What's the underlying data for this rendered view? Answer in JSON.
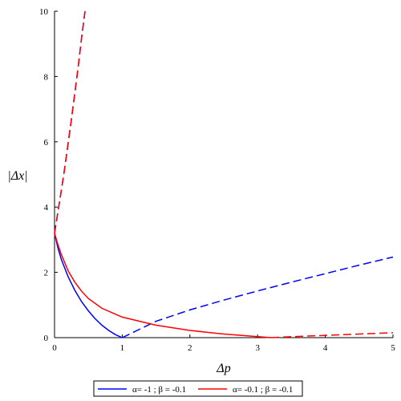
{
  "chart_data": {
    "type": "line",
    "title": "",
    "xlabel": "Δp",
    "ylabel": "|Δx|",
    "xlim": [
      0,
      5
    ],
    "ylim": [
      0,
      10
    ],
    "xticks": [
      0,
      1,
      2,
      3,
      4,
      5
    ],
    "yticks": [
      0,
      2,
      4,
      6,
      8,
      10
    ],
    "grid": false,
    "legend_position": "bottom",
    "series": [
      {
        "name": "α= -1 ; β = -0.1",
        "color": "#0000ff",
        "segments": [
          {
            "style": "solid",
            "points": [
              [
                0,
                3.2
              ],
              [
                0.05,
                2.75
              ],
              [
                0.1,
                2.4
              ],
              [
                0.2,
                1.87
              ],
              [
                0.3,
                1.45
              ],
              [
                0.4,
                1.1
              ],
              [
                0.5,
                0.82
              ],
              [
                0.6,
                0.58
              ],
              [
                0.7,
                0.38
              ],
              [
                0.8,
                0.22
              ],
              [
                0.9,
                0.09
              ],
              [
                1.0,
                0.0
              ]
            ]
          },
          {
            "style": "dashed",
            "points": [
              [
                1.0,
                0.0
              ],
              [
                1.5,
                0.5
              ],
              [
                2.0,
                0.85
              ],
              [
                2.5,
                1.15
              ],
              [
                3.0,
                1.43
              ],
              [
                3.5,
                1.7
              ],
              [
                4.0,
                1.96
              ],
              [
                4.5,
                2.22
              ],
              [
                5.0,
                2.47
              ]
            ]
          },
          {
            "style": "dashed",
            "points": [
              [
                0,
                3.2
              ],
              [
                0.05,
                3.85
              ],
              [
                0.1,
                4.5
              ],
              [
                0.15,
                5.2
              ],
              [
                0.2,
                5.95
              ],
              [
                0.25,
                6.7
              ],
              [
                0.3,
                7.5
              ],
              [
                0.35,
                8.3
              ],
              [
                0.4,
                9.2
              ],
              [
                0.45,
                10.0
              ]
            ]
          }
        ]
      },
      {
        "name": "α= -0.1 ; β = -0.1",
        "color": "#ff0000",
        "segments": [
          {
            "style": "solid",
            "points": [
              [
                0,
                3.2
              ],
              [
                0.05,
                2.85
              ],
              [
                0.1,
                2.55
              ],
              [
                0.2,
                2.05
              ],
              [
                0.3,
                1.7
              ],
              [
                0.4,
                1.42
              ],
              [
                0.5,
                1.2
              ],
              [
                0.7,
                0.9
              ],
              [
                1.0,
                0.63
              ],
              [
                1.5,
                0.38
              ],
              [
                2.0,
                0.22
              ],
              [
                2.5,
                0.11
              ],
              [
                3.0,
                0.03
              ],
              [
                3.2,
                0.0
              ]
            ]
          },
          {
            "style": "dashed",
            "points": [
              [
                3.2,
                0.0
              ],
              [
                3.5,
                0.03
              ],
              [
                4.0,
                0.07
              ],
              [
                4.5,
                0.11
              ],
              [
                5.0,
                0.15
              ]
            ]
          },
          {
            "style": "dashed",
            "points": [
              [
                0,
                3.2
              ],
              [
                0.05,
                3.85
              ],
              [
                0.1,
                4.5
              ],
              [
                0.15,
                5.2
              ],
              [
                0.2,
                5.95
              ],
              [
                0.25,
                6.7
              ],
              [
                0.3,
                7.5
              ],
              [
                0.35,
                8.3
              ],
              [
                0.4,
                9.2
              ],
              [
                0.45,
                10.0
              ]
            ]
          }
        ]
      }
    ]
  }
}
